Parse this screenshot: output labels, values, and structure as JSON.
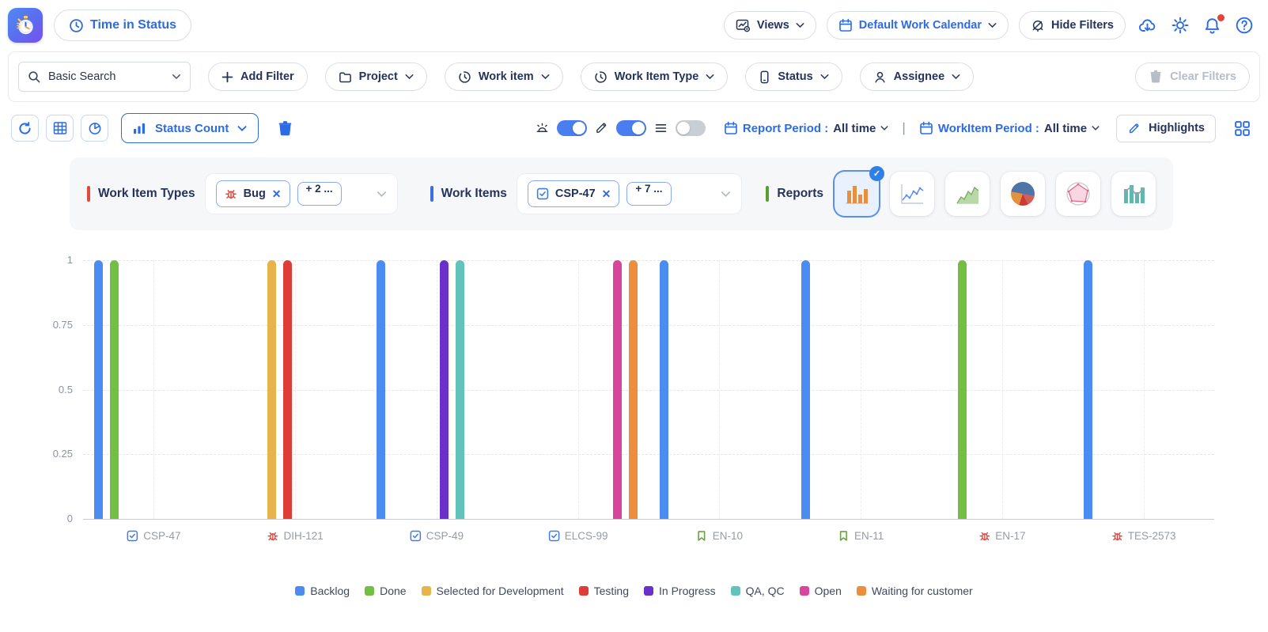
{
  "header": {
    "title": "Time in Status",
    "views": "Views",
    "work_calendar": "Default Work Calendar",
    "hide_filters": "Hide Filters"
  },
  "filter_bar": {
    "search_value": "Basic Search",
    "add_filter": "Add Filter",
    "project": "Project",
    "work_item": "Work item",
    "work_item_type": "Work Item Type",
    "status": "Status",
    "assignee": "Assignee",
    "clear_filters": "Clear Filters"
  },
  "toolbar": {
    "view_dropdown": "Status Count",
    "report_period_label": "Report Period :",
    "report_period_value": "All time",
    "workitem_period_label": "WorkItem Period :",
    "workitem_period_value": "All time",
    "highlights": "Highlights",
    "toggles": [
      {
        "name": "alerts",
        "on": true
      },
      {
        "name": "highlight-marker",
        "on": true
      },
      {
        "name": "list-view",
        "on": false
      }
    ]
  },
  "selection_panel": {
    "work_item_types_label": "Work Item Types",
    "work_item_types_chips": [
      {
        "label": "Bug",
        "icon": "bug"
      }
    ],
    "work_item_types_more": "+ 2 ...",
    "work_items_label": "Work Items",
    "work_items_chips": [
      {
        "label": "CSP-47",
        "icon": "task"
      }
    ],
    "work_items_more": "+ 7 ...",
    "reports_label": "Reports",
    "report_types": [
      {
        "name": "bar",
        "selected": true
      },
      {
        "name": "line",
        "selected": false
      },
      {
        "name": "area",
        "selected": false
      },
      {
        "name": "pie",
        "selected": false
      },
      {
        "name": "radar",
        "selected": false
      },
      {
        "name": "bar-line",
        "selected": false
      }
    ]
  },
  "colors": {
    "accent": "#2c6be4",
    "text_dark": "#25335a",
    "work_item_types_bar": "#e2483d",
    "work_items_bar": "#3d6fe0",
    "reports_bar": "#5a9e32"
  },
  "chart_data": {
    "type": "bar",
    "title": "Status Count",
    "xlabel": "",
    "ylabel": "",
    "ylim": [
      0,
      1
    ],
    "yticks": [
      0,
      0.25,
      0.5,
      0.75,
      1
    ],
    "grid": true,
    "legend_position": "bottom",
    "categories": [
      "CSP-47",
      "DIH-121",
      "CSP-49",
      "ELCS-99",
      "EN-10",
      "EN-11",
      "EN-17",
      "TES-2573"
    ],
    "category_icons": [
      "task",
      "bug",
      "task",
      "task",
      "story",
      "story",
      "bug",
      "bug"
    ],
    "series": [
      {
        "name": "Backlog",
        "color": "#4a8cf1",
        "values": [
          1,
          0,
          1,
          0,
          1,
          1,
          0,
          1
        ]
      },
      {
        "name": "Done",
        "color": "#72bf44",
        "values": [
          1,
          0,
          0,
          0,
          0,
          0,
          1,
          0
        ]
      },
      {
        "name": "Selected for Development",
        "color": "#e9b34b",
        "values": [
          0,
          1,
          0,
          0,
          0,
          0,
          0,
          0
        ]
      },
      {
        "name": "Testing",
        "color": "#dd3c37",
        "values": [
          0,
          1,
          0,
          0,
          0,
          0,
          0,
          0
        ]
      },
      {
        "name": "In Progress",
        "color": "#6a30ca",
        "values": [
          0,
          0,
          1,
          0,
          0,
          0,
          0,
          0
        ]
      },
      {
        "name": "QA, QC",
        "color": "#61c3b9",
        "values": [
          0,
          0,
          1,
          0,
          0,
          0,
          0,
          0
        ]
      },
      {
        "name": "Open",
        "color": "#d9449d",
        "values": [
          0,
          0,
          0,
          1,
          0,
          0,
          0,
          0
        ]
      },
      {
        "name": "Waiting for customer",
        "color": "#ec8e3d",
        "values": [
          0,
          0,
          0,
          1,
          0,
          0,
          0,
          0
        ]
      }
    ]
  }
}
